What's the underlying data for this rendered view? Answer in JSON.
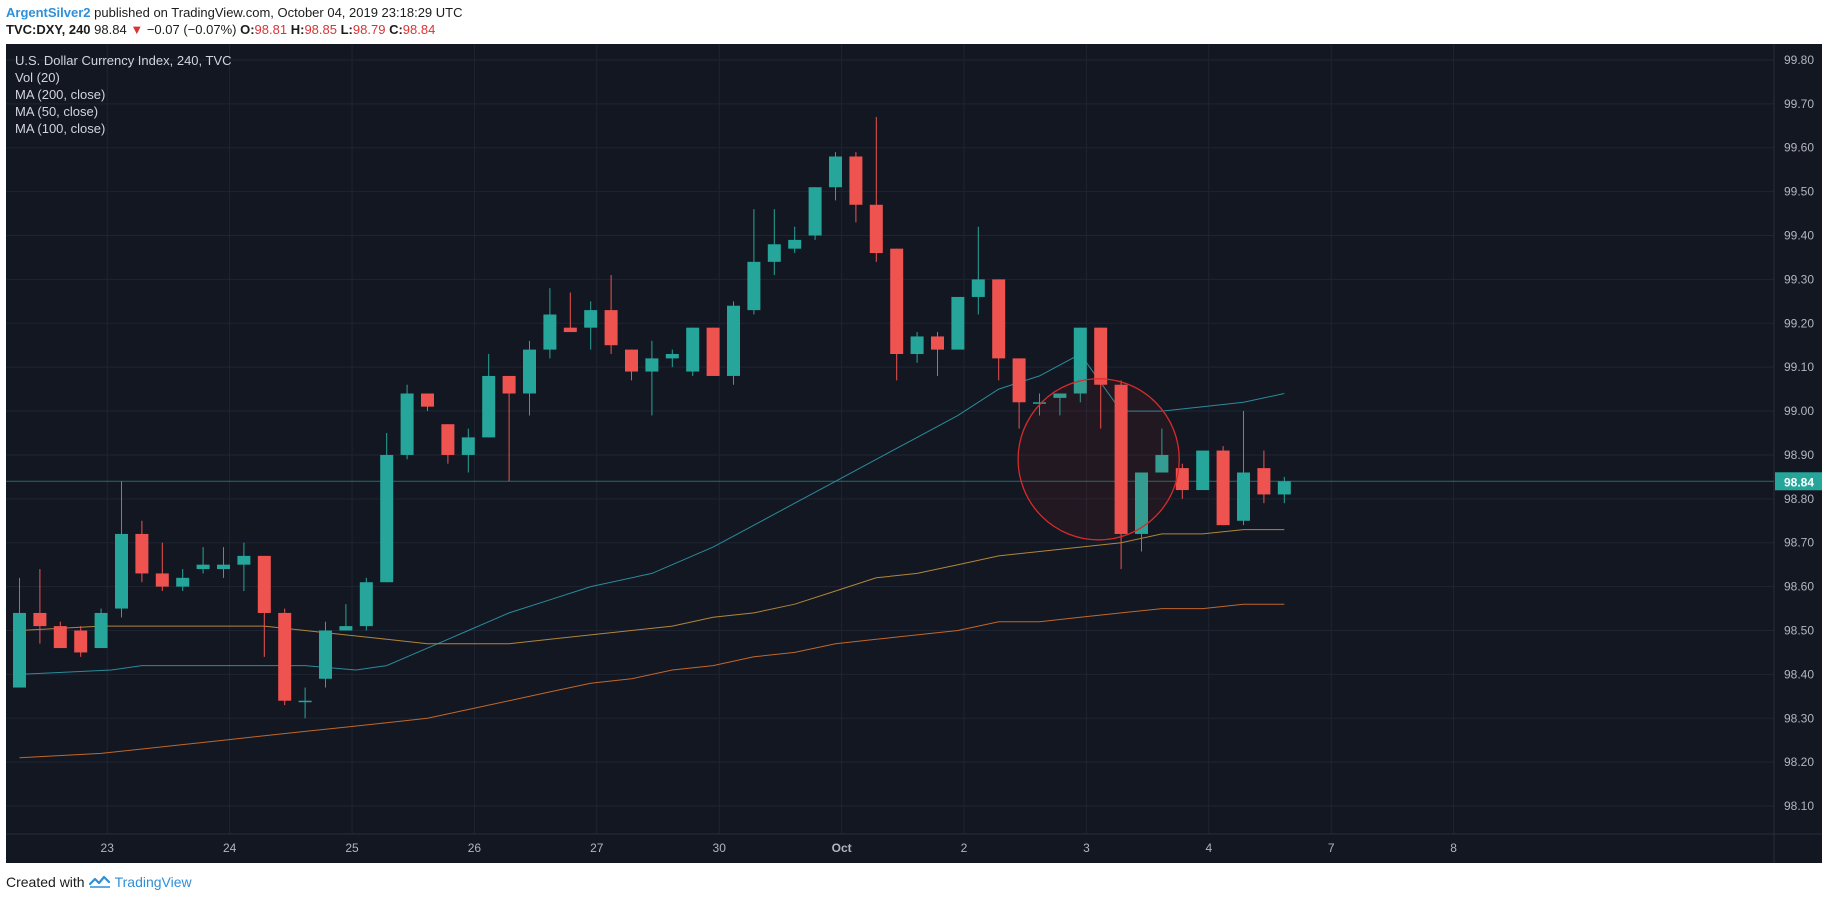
{
  "header": {
    "publisher": "ArgentSilver2",
    "published_text": "published on TradingView.com, October 04, 2019 23:18:29 UTC",
    "symbol": "TVC:DXY, 240",
    "last": "98.84",
    "change": "−0.07 (−0.07%)",
    "o_label": "O:",
    "o_value": "98.81",
    "h_label": "H:",
    "h_value": "98.85",
    "l_label": "L:",
    "l_value": "98.79",
    "c_label": "C:",
    "c_value": "98.84"
  },
  "legend": {
    "title": "U.S. Dollar Currency Index, 240, TVC",
    "vol": "Vol (20)",
    "ma200": "MA (200, close)",
    "ma50": "MA (50, close)",
    "ma100": "MA (100, close)"
  },
  "footer": {
    "created_with": "Created with",
    "brand": "TradingView"
  },
  "colors": {
    "background": "#131722",
    "up": "#26a69a",
    "down": "#ef5350",
    "ma50": "#2a8c9c",
    "ma100": "#b0863a",
    "ma200": "#c0672a",
    "circle": "#d62b2b",
    "price_badge": "#26a69a"
  },
  "chart_data": {
    "type": "candlestick",
    "title": "U.S. Dollar Currency Index, 240, TVC",
    "ylim": [
      98.05,
      99.85
    ],
    "y_ticks": [
      "99.80",
      "99.70",
      "99.60",
      "99.50",
      "99.40",
      "99.30",
      "99.20",
      "99.10",
      "99.00",
      "98.90",
      "98.80",
      "98.70",
      "98.60",
      "98.50",
      "98.40",
      "98.30",
      "98.20",
      "98.10"
    ],
    "x_tick_labels": [
      {
        "label": "23",
        "bar": 4.3
      },
      {
        "label": "24",
        "bar": 10.3
      },
      {
        "label": "25",
        "bar": 16.3
      },
      {
        "label": "26",
        "bar": 22.3
      },
      {
        "label": "27",
        "bar": 28.3
      },
      {
        "label": "30",
        "bar": 34.3
      },
      {
        "label": "Oct",
        "bar": 40.3
      },
      {
        "label": "2",
        "bar": 46.3
      },
      {
        "label": "3",
        "bar": 52.3
      },
      {
        "label": "4",
        "bar": 58.3
      },
      {
        "label": "7",
        "bar": 64.3
      },
      {
        "label": "8",
        "bar": 70.3
      }
    ],
    "last_price": "98.84",
    "candles": [
      {
        "o": 98.37,
        "h": 98.62,
        "l": 98.37,
        "c": 98.54
      },
      {
        "o": 98.54,
        "h": 98.64,
        "l": 98.47,
        "c": 98.51
      },
      {
        "o": 98.51,
        "h": 98.52,
        "l": 98.46,
        "c": 98.46
      },
      {
        "o": 98.5,
        "h": 98.51,
        "l": 98.44,
        "c": 98.45
      },
      {
        "o": 98.46,
        "h": 98.55,
        "l": 98.46,
        "c": 98.54
      },
      {
        "o": 98.55,
        "h": 98.84,
        "l": 98.53,
        "c": 98.72
      },
      {
        "o": 98.72,
        "h": 98.75,
        "l": 98.61,
        "c": 98.63
      },
      {
        "o": 98.63,
        "h": 98.7,
        "l": 98.59,
        "c": 98.6
      },
      {
        "o": 98.6,
        "h": 98.64,
        "l": 98.59,
        "c": 98.62
      },
      {
        "o": 98.64,
        "h": 98.69,
        "l": 98.63,
        "c": 98.65
      },
      {
        "o": 98.64,
        "h": 98.69,
        "l": 98.62,
        "c": 98.65
      },
      {
        "o": 98.65,
        "h": 98.7,
        "l": 98.59,
        "c": 98.67
      },
      {
        "o": 98.67,
        "h": 98.67,
        "l": 98.44,
        "c": 98.54
      },
      {
        "o": 98.54,
        "h": 98.55,
        "l": 98.33,
        "c": 98.34
      },
      {
        "o": 98.34,
        "h": 98.37,
        "l": 98.3,
        "c": 98.34
      },
      {
        "o": 98.39,
        "h": 98.52,
        "l": 98.37,
        "c": 98.5
      },
      {
        "o": 98.5,
        "h": 98.56,
        "l": 98.5,
        "c": 98.51
      },
      {
        "o": 98.51,
        "h": 98.62,
        "l": 98.5,
        "c": 98.61
      },
      {
        "o": 98.61,
        "h": 98.95,
        "l": 98.61,
        "c": 98.9
      },
      {
        "o": 98.9,
        "h": 99.06,
        "l": 98.89,
        "c": 99.04
      },
      {
        "o": 99.04,
        "h": 99.04,
        "l": 99.0,
        "c": 99.01
      },
      {
        "o": 98.97,
        "h": 98.97,
        "l": 98.88,
        "c": 98.9
      },
      {
        "o": 98.9,
        "h": 98.96,
        "l": 98.86,
        "c": 98.94
      },
      {
        "o": 98.94,
        "h": 99.13,
        "l": 98.94,
        "c": 99.08
      },
      {
        "o": 99.08,
        "h": 99.08,
        "l": 98.84,
        "c": 99.04
      },
      {
        "o": 99.04,
        "h": 99.16,
        "l": 98.99,
        "c": 99.14
      },
      {
        "o": 99.14,
        "h": 99.28,
        "l": 99.12,
        "c": 99.22
      },
      {
        "o": 99.19,
        "h": 99.27,
        "l": 99.18,
        "c": 99.18
      },
      {
        "o": 99.19,
        "h": 99.25,
        "l": 99.14,
        "c": 99.23
      },
      {
        "o": 99.23,
        "h": 99.31,
        "l": 99.13,
        "c": 99.15
      },
      {
        "o": 99.14,
        "h": 99.14,
        "l": 99.07,
        "c": 99.09
      },
      {
        "o": 99.09,
        "h": 99.16,
        "l": 98.99,
        "c": 99.12
      },
      {
        "o": 99.12,
        "h": 99.14,
        "l": 99.1,
        "c": 99.13
      },
      {
        "o": 99.09,
        "h": 99.19,
        "l": 99.08,
        "c": 99.19
      },
      {
        "o": 99.19,
        "h": 99.19,
        "l": 99.08,
        "c": 99.08
      },
      {
        "o": 99.08,
        "h": 99.25,
        "l": 99.06,
        "c": 99.24
      },
      {
        "o": 99.23,
        "h": 99.46,
        "l": 99.22,
        "c": 99.34
      },
      {
        "o": 99.34,
        "h": 99.46,
        "l": 99.31,
        "c": 99.38
      },
      {
        "o": 99.37,
        "h": 99.42,
        "l": 99.36,
        "c": 99.39
      },
      {
        "o": 99.4,
        "h": 99.51,
        "l": 99.39,
        "c": 99.51
      },
      {
        "o": 99.51,
        "h": 99.59,
        "l": 99.48,
        "c": 99.58
      },
      {
        "o": 99.58,
        "h": 99.59,
        "l": 99.43,
        "c": 99.47
      },
      {
        "o": 99.47,
        "h": 99.67,
        "l": 99.34,
        "c": 99.36
      },
      {
        "o": 99.37,
        "h": 99.37,
        "l": 99.07,
        "c": 99.13
      },
      {
        "o": 99.13,
        "h": 99.18,
        "l": 99.11,
        "c": 99.17
      },
      {
        "o": 99.17,
        "h": 99.18,
        "l": 99.08,
        "c": 99.14
      },
      {
        "o": 99.14,
        "h": 99.26,
        "l": 99.14,
        "c": 99.26
      },
      {
        "o": 99.26,
        "h": 99.42,
        "l": 99.22,
        "c": 99.3
      },
      {
        "o": 99.3,
        "h": 99.3,
        "l": 99.07,
        "c": 99.12
      },
      {
        "o": 99.12,
        "h": 99.12,
        "l": 98.96,
        "c": 99.02
      },
      {
        "o": 99.02,
        "h": 99.04,
        "l": 98.99,
        "c": 99.02
      },
      {
        "o": 99.03,
        "h": 99.04,
        "l": 98.99,
        "c": 99.04
      },
      {
        "o": 99.04,
        "h": 99.19,
        "l": 99.02,
        "c": 99.19
      },
      {
        "o": 99.19,
        "h": 99.19,
        "l": 98.96,
        "c": 99.06
      },
      {
        "o": 99.06,
        "h": 99.07,
        "l": 98.64,
        "c": 98.72
      },
      {
        "o": 98.72,
        "h": 98.86,
        "l": 98.68,
        "c": 98.86
      },
      {
        "o": 98.86,
        "h": 98.96,
        "l": 98.86,
        "c": 98.9
      },
      {
        "o": 98.87,
        "h": 98.88,
        "l": 98.8,
        "c": 98.82
      },
      {
        "o": 98.82,
        "h": 98.91,
        "l": 98.82,
        "c": 98.91
      },
      {
        "o": 98.91,
        "h": 98.92,
        "l": 98.74,
        "c": 98.74
      },
      {
        "o": 98.75,
        "h": 99.0,
        "l": 98.74,
        "c": 98.86
      },
      {
        "o": 98.87,
        "h": 98.91,
        "l": 98.79,
        "c": 98.81
      },
      {
        "o": 98.81,
        "h": 98.85,
        "l": 98.79,
        "c": 98.84
      }
    ],
    "series": [
      {
        "name": "MA (50, close)",
        "x": [
          0,
          4.5,
          6,
          12,
          14,
          16.5,
          18,
          19,
          20,
          21,
          22,
          23,
          24,
          26,
          28,
          31,
          34,
          36,
          38,
          40,
          42,
          44,
          46,
          48,
          50,
          52,
          54,
          56,
          58,
          60,
          62
        ],
        "values": [
          98.4,
          98.41,
          98.42,
          98.42,
          98.42,
          98.41,
          98.42,
          98.44,
          98.46,
          98.48,
          98.5,
          98.52,
          98.54,
          98.57,
          98.6,
          98.63,
          98.69,
          98.74,
          98.79,
          98.84,
          98.89,
          98.94,
          98.99,
          99.05,
          99.08,
          99.13,
          99.0,
          99.0,
          99.01,
          99.02,
          99.04
        ]
      },
      {
        "name": "MA (100, close)",
        "x": [
          0,
          4,
          8,
          12,
          14,
          18,
          20,
          22,
          24,
          26,
          28,
          30,
          32,
          34,
          36,
          38,
          40,
          42,
          44,
          46,
          48,
          50,
          52,
          54,
          56,
          58,
          60,
          62
        ],
        "values": [
          98.5,
          98.51,
          98.51,
          98.51,
          98.5,
          98.48,
          98.47,
          98.47,
          98.47,
          98.48,
          98.49,
          98.5,
          98.51,
          98.53,
          98.54,
          98.56,
          98.59,
          98.62,
          98.63,
          98.65,
          98.67,
          98.68,
          98.69,
          98.7,
          98.72,
          98.72,
          98.73,
          98.73
        ]
      },
      {
        "name": "MA (200, close)",
        "x": [
          0,
          4,
          8,
          10,
          12,
          14,
          16,
          18,
          20,
          22,
          24,
          26,
          28,
          30,
          32,
          34,
          36,
          38,
          40,
          42,
          44,
          46,
          48,
          50,
          52,
          54,
          56,
          58,
          60,
          62
        ],
        "values": [
          98.21,
          98.22,
          98.24,
          98.25,
          98.26,
          98.27,
          98.28,
          98.29,
          98.3,
          98.32,
          98.34,
          98.36,
          98.38,
          98.39,
          98.41,
          98.42,
          98.44,
          98.45,
          98.47,
          98.48,
          98.49,
          98.5,
          98.52,
          98.52,
          98.53,
          98.54,
          98.55,
          98.55,
          98.56,
          98.56
        ]
      }
    ],
    "annotation": {
      "type": "circle",
      "center_bar": 52.9,
      "center_y": 98.89,
      "radius_bars": 3.95
    }
  }
}
